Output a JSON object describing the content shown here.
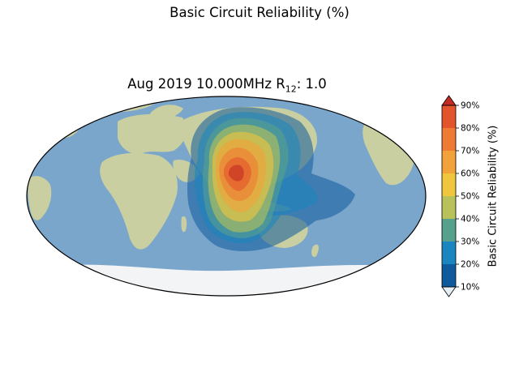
{
  "figure_title": "Basic Circuit Reliability (%)",
  "map_title": {
    "prefix": "Aug 2019 10.000MHz R",
    "subscript": "12",
    "suffix": ": 1.0"
  },
  "colorbar": {
    "label": "Basic Circuit Reliability (%)",
    "ticks": [
      "10%",
      "20%",
      "30%",
      "40%",
      "50%",
      "60%",
      "70%",
      "80%",
      "90%"
    ],
    "colors": [
      "#0e5a9c",
      "#1a85be",
      "#56a08c",
      "#b9c25a",
      "#f0c63c",
      "#f2a23a",
      "#ee7a34",
      "#e3542c"
    ],
    "under_color": "#e6eef6",
    "over_color": "#c22a23"
  },
  "map": {
    "projection": "mollweide",
    "ocean_color": "#7aa6cc",
    "land_color": "#c9cfa0",
    "ice_color": "#f2f4f6"
  }
}
